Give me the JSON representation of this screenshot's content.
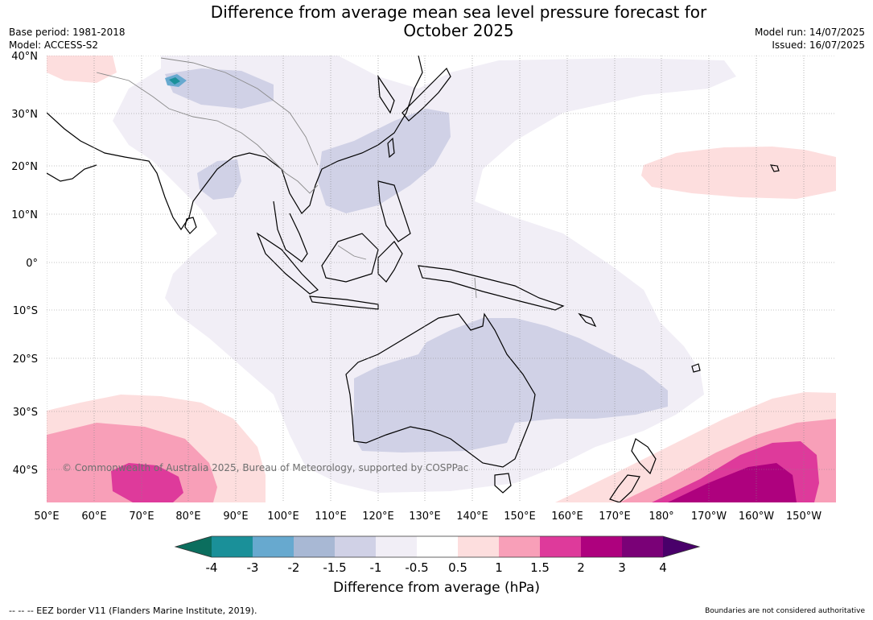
{
  "title_line1": "Difference from average mean sea level pressure forecast for",
  "title_line2": "October 2025",
  "meta_left": {
    "base_period": "Base period: 1981-2018",
    "model": "Model: ACCESS-S2"
  },
  "meta_right": {
    "model_run": "Model run: 14/07/2025",
    "issued": "Issued: 16/07/2025"
  },
  "latitude_labels": [
    "40°N",
    "30°N",
    "20°N",
    "10°N",
    "0°",
    "10°S",
    "20°S",
    "30°S",
    "40°S"
  ],
  "longitude_labels": [
    "50°E",
    "60°E",
    "70°E",
    "80°E",
    "90°E",
    "100°E",
    "110°E",
    "120°E",
    "130°E",
    "140°E",
    "150°E",
    "160°E",
    "170°E",
    "180°",
    "170°W",
    "160°W",
    "150°W"
  ],
  "copyright": "© Commonwealth of Australia 2025, Bureau of Meteorology, supported by COSPPac",
  "colorbar": {
    "title": "Difference from average (hPa)",
    "tick_labels": [
      "-4",
      "-3",
      "-2",
      "-1.5",
      "-1",
      "-0.5",
      "0.5",
      "1",
      "1.5",
      "2",
      "3",
      "4"
    ],
    "colors": {
      "below_min": "#0b6e5e",
      "m4_m3": "#1a9099",
      "m3_m2": "#67a9cf",
      "m2_m15": "#a8b8d4",
      "m15_m1": "#d0d1e6",
      "m1_m05": "#f1eef6",
      "m05_05": "#ffffff",
      "p05_1": "#fddede",
      "p1_15": "#f89fb8",
      "p15_2": "#de3a9b",
      "p2_3": "#ae017e",
      "p3_4": "#7a0177",
      "above_max": "#49006a"
    }
  },
  "footer_left": "--  --  -- EEZ border V11 (Flanders Marine Institute, 2019).",
  "footer_right": "Boundaries are not considered authoritative"
}
